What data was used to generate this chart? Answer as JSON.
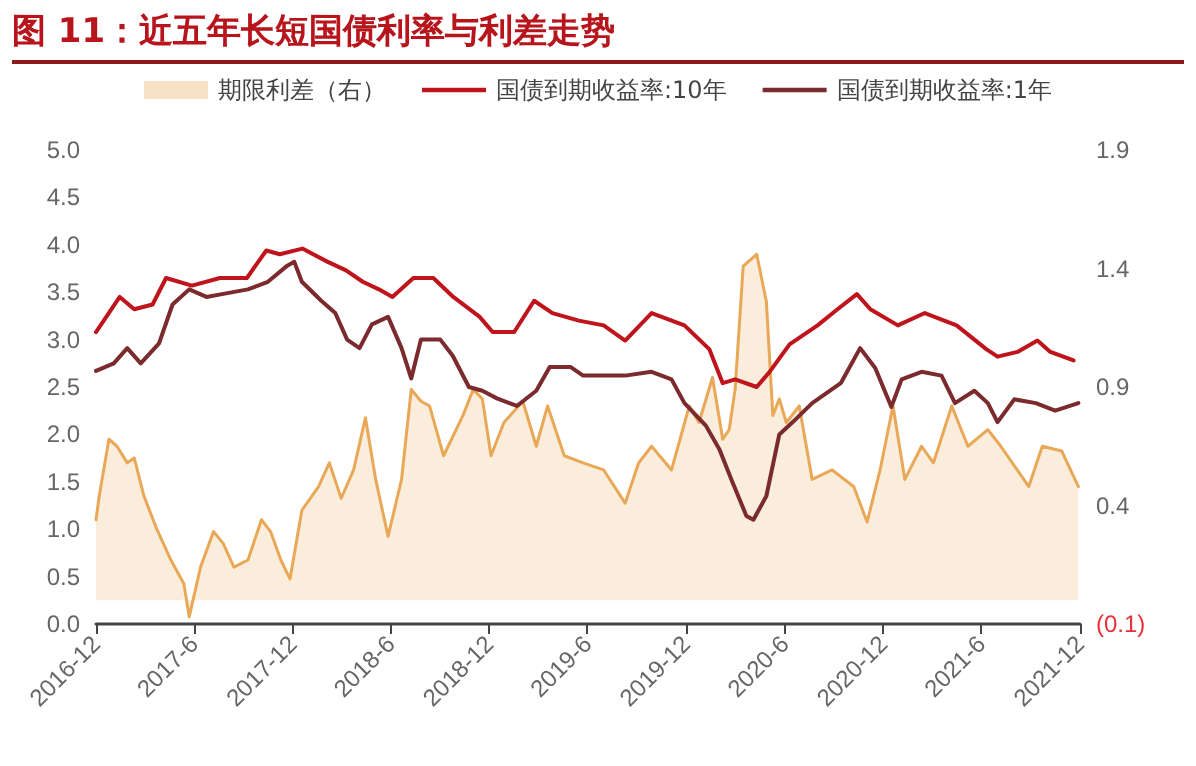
{
  "chart_data": {
    "type": "line",
    "title": "图 11：近五年长短国债利率与利差走势",
    "xlim": [
      "2016-12",
      "2021-12"
    ],
    "xticks": [
      {
        "value": "2016-12",
        "label": "2016-12"
      },
      {
        "value": "2017-06",
        "label": "2017-6"
      },
      {
        "value": "2017-12",
        "label": "2017-12"
      },
      {
        "value": "2018-06",
        "label": "2018-6"
      },
      {
        "value": "2018-12",
        "label": "2018-12"
      },
      {
        "value": "2019-06",
        "label": "2019-6"
      },
      {
        "value": "2019-12",
        "label": "2019-12"
      },
      {
        "value": "2020-06",
        "label": "2020-6"
      },
      {
        "value": "2020-12",
        "label": "2020-12"
      },
      {
        "value": "2021-06",
        "label": "2021-6"
      },
      {
        "value": "2021-12",
        "label": "2021-12"
      }
    ],
    "ylim": [
      0,
      5
    ],
    "yticks": [
      {
        "value": 0,
        "label": "0.0"
      },
      {
        "value": 0.5,
        "label": "0.5"
      },
      {
        "value": 1,
        "label": "1.0"
      },
      {
        "value": 1.5,
        "label": "1.5"
      },
      {
        "value": 2,
        "label": "2.0"
      },
      {
        "value": 2.5,
        "label": "2.5"
      },
      {
        "value": 3,
        "label": "3.0"
      },
      {
        "value": 3.5,
        "label": "3.5"
      },
      {
        "value": 4,
        "label": "4.0"
      },
      {
        "value": 4.5,
        "label": "4.5"
      },
      {
        "value": 5,
        "label": "5.0"
      }
    ],
    "y2lim": [
      -0.1,
      1.9
    ],
    "y2ticks": [
      {
        "value": -0.1,
        "label": "(0.1)"
      },
      0.4,
      0.9,
      1.4,
      1.9
    ],
    "legend": "top",
    "grid": false,
    "marker": "none",
    "line_style": "solid",
    "series": [
      {
        "name": "期限利差（右）",
        "type": "area",
        "axis": "y2",
        "color": "#e8a857",
        "x": [
          "2016-12-01",
          "2016-12-07",
          "2016-12-25",
          "2017-01-09",
          "2017-01-28",
          "2017-02-10",
          "2017-02-28",
          "2017-03-22",
          "2017-04-19",
          "2017-05-13",
          "2017-05-23",
          "2017-06-13",
          "2017-07-07",
          "2017-07-25",
          "2017-08-14",
          "2017-09-09",
          "2017-10-04",
          "2017-10-21",
          "2017-11-09",
          "2017-11-26",
          "2017-12-18",
          "2018-01-18",
          "2018-02-07",
          "2018-03-01",
          "2018-03-24",
          "2018-04-15",
          "2018-05-04",
          "2018-05-27",
          "2018-06-21",
          "2018-07-09",
          "2018-07-27",
          "2018-08-12",
          "2018-09-07",
          "2018-10-13",
          "2018-11-01",
          "2018-11-18",
          "2018-12-04",
          "2018-12-28",
          "2019-02-01",
          "2019-02-26",
          "2019-03-19",
          "2019-04-19",
          "2019-05-24",
          "2019-07-01",
          "2019-08-10",
          "2019-09-04",
          "2019-09-28",
          "2019-11-04",
          "2019-12-07",
          "2019-12-25",
          "2020-01-19",
          "2020-02-07",
          "2020-02-19",
          "2020-03-01",
          "2020-03-16",
          "2020-04-10",
          "2020-04-28",
          "2020-05-10",
          "2020-05-22",
          "2020-06-04",
          "2020-06-28",
          "2020-07-22",
          "2020-08-28",
          "2020-10-07",
          "2020-11-01",
          "2020-11-25",
          "2020-12-19",
          "2021-01-10",
          "2021-02-10",
          "2021-03-04",
          "2021-04-07",
          "2021-05-07",
          "2021-06-13",
          "2021-07-07",
          "2021-08-28",
          "2021-09-22",
          "2021-10-28",
          "2021-11-28"
        ],
        "values": [
          0.34,
          0.44,
          0.68,
          0.65,
          0.58,
          0.6,
          0.44,
          0.31,
          0.17,
          0.07,
          -0.07,
          0.14,
          0.29,
          0.24,
          0.14,
          0.17,
          0.34,
          0.29,
          0.17,
          0.09,
          0.38,
          0.48,
          0.58,
          0.43,
          0.55,
          0.77,
          0.51,
          0.27,
          0.51,
          0.89,
          0.84,
          0.82,
          0.61,
          0.78,
          0.89,
          0.85,
          0.61,
          0.75,
          0.84,
          0.65,
          0.82,
          0.61,
          0.58,
          0.55,
          0.41,
          0.58,
          0.65,
          0.55,
          0.82,
          0.75,
          0.94,
          0.68,
          0.72,
          0.89,
          1.41,
          1.46,
          1.26,
          0.78,
          0.85,
          0.75,
          0.82,
          0.51,
          0.55,
          0.48,
          0.33,
          0.55,
          0.82,
          0.51,
          0.65,
          0.58,
          0.82,
          0.65,
          0.72,
          0.65,
          0.48,
          0.65,
          0.63,
          0.48
        ]
      },
      {
        "name": "国债到期收益率:10年",
        "color": "#c0141c",
        "x": [
          "2016-12-01",
          "2017-01-14",
          "2017-02-10",
          "2017-03-16",
          "2017-04-10",
          "2017-05-28",
          "2017-07-19",
          "2017-09-07",
          "2017-10-13",
          "2017-11-07",
          "2017-12-19",
          "2018-02-04",
          "2018-03-10",
          "2018-04-10",
          "2018-05-10",
          "2018-06-04",
          "2018-07-13",
          "2018-08-19",
          "2018-09-25",
          "2018-11-13",
          "2018-12-07",
          "2019-01-16",
          "2019-02-22",
          "2019-03-28",
          "2019-05-16",
          "2019-07-01",
          "2019-08-10",
          "2019-09-28",
          "2019-11-28",
          "2020-01-13",
          "2020-02-07",
          "2020-03-01",
          "2020-04-10",
          "2020-05-04",
          "2020-06-10",
          "2020-08-01",
          "2020-09-07",
          "2020-10-13",
          "2020-11-07",
          "2020-12-28",
          "2021-02-16",
          "2021-04-16",
          "2021-06-10",
          "2021-07-01",
          "2021-08-07",
          "2021-09-13",
          "2021-10-07",
          "2021-11-19"
        ],
        "values": [
          3.08,
          3.45,
          3.32,
          3.37,
          3.65,
          3.57,
          3.65,
          3.65,
          3.94,
          3.9,
          3.96,
          3.82,
          3.73,
          3.61,
          3.53,
          3.45,
          3.65,
          3.65,
          3.45,
          3.24,
          3.08,
          3.08,
          3.41,
          3.28,
          3.2,
          3.15,
          2.99,
          3.28,
          3.15,
          2.9,
          2.54,
          2.58,
          2.5,
          2.66,
          2.95,
          3.15,
          3.32,
          3.48,
          3.32,
          3.15,
          3.28,
          3.15,
          2.9,
          2.82,
          2.87,
          2.99,
          2.87,
          2.78
        ]
      },
      {
        "name": "国债到期收益率:1年",
        "color": "#7b2a2e",
        "x": [
          "2016-12-01",
          "2017-01-03",
          "2017-01-28",
          "2017-02-22",
          "2017-03-28",
          "2017-04-22",
          "2017-05-23",
          "2017-06-24",
          "2017-08-02",
          "2017-09-09",
          "2017-10-16",
          "2017-11-21",
          "2017-12-04",
          "2017-12-18",
          "2018-01-23",
          "2018-02-18",
          "2018-03-12",
          "2018-04-04",
          "2018-04-27",
          "2018-05-27",
          "2018-06-21",
          "2018-07-09",
          "2018-07-27",
          "2018-09-01",
          "2018-09-24",
          "2018-10-24",
          "2018-11-18",
          "2018-12-15",
          "2019-01-21",
          "2019-02-26",
          "2019-03-23",
          "2019-05-01",
          "2019-05-24",
          "2019-08-10",
          "2019-09-28",
          "2019-11-04",
          "2019-11-28",
          "2020-01-07",
          "2020-02-01",
          "2020-02-24",
          "2020-03-22",
          "2020-04-04",
          "2020-04-28",
          "2020-05-22",
          "2020-06-16",
          "2020-07-22",
          "2020-09-13",
          "2020-10-19",
          "2020-11-16",
          "2020-12-16",
          "2021-01-04",
          "2021-02-10",
          "2021-03-19",
          "2021-04-13",
          "2021-05-19",
          "2021-06-13",
          "2021-07-01",
          "2021-08-01",
          "2021-09-10",
          "2021-10-16",
          "2021-11-28"
        ],
        "values": [
          2.67,
          2.75,
          2.91,
          2.75,
          2.96,
          3.37,
          3.53,
          3.45,
          3.49,
          3.53,
          3.61,
          3.78,
          3.82,
          3.61,
          3.41,
          3.28,
          3.0,
          2.91,
          3.16,
          3.24,
          2.91,
          2.59,
          3.0,
          3.0,
          2.83,
          2.5,
          2.46,
          2.38,
          2.3,
          2.46,
          2.71,
          2.71,
          2.62,
          2.62,
          2.66,
          2.58,
          2.33,
          2.09,
          1.84,
          1.51,
          1.14,
          1.1,
          1.35,
          2.0,
          2.13,
          2.33,
          2.54,
          2.91,
          2.7,
          2.29,
          2.58,
          2.66,
          2.62,
          2.33,
          2.46,
          2.33,
          2.13,
          2.37,
          2.33,
          2.25,
          2.33
        ]
      }
    ]
  }
}
